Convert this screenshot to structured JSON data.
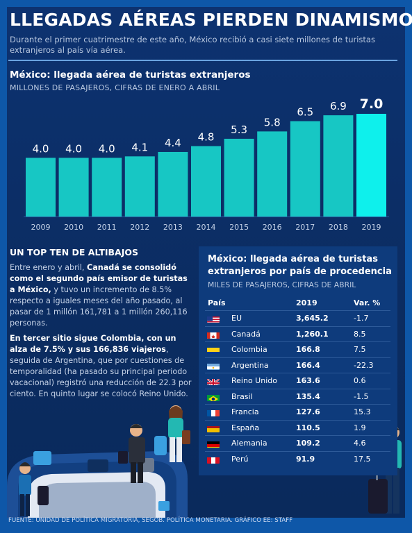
{
  "header": {
    "title": "LLEGADAS AÉREAS PIERDEN DINAMISMO",
    "subtitle": "Durante el primer cuatrimestre de este año, México recibió a casi siete millones de turistas extranjeros al país vía aérea."
  },
  "colors": {
    "bar": "#17c7c4",
    "bar_highlight": "#0ef0ec",
    "background": "#0b2c61",
    "frame": "#0e57a8"
  },
  "chart_data": {
    "type": "bar",
    "title": "México: llegada aérea de turistas extranjeros",
    "subtitle": "MILLONES DE PASAJEROS, CIFRAS DE ENERO A ABRIL",
    "categories": [
      "2009",
      "2010",
      "2011",
      "2012",
      "2013",
      "2014",
      "2015",
      "2016",
      "2017",
      "2018",
      "2019"
    ],
    "values": [
      4.0,
      4.0,
      4.0,
      4.1,
      4.4,
      4.8,
      5.3,
      5.8,
      6.5,
      6.9,
      7.0
    ],
    "value_labels": [
      "4.0",
      "4.0",
      "4.0",
      "4.1",
      "4.4",
      "4.8",
      "5.3",
      "5.8",
      "6.5",
      "6.9",
      "7.0"
    ],
    "highlight_index": 10,
    "xlabel": "",
    "ylabel": "",
    "ylim": [
      0,
      7.0
    ],
    "grid": false
  },
  "section": {
    "heading": "UN TOP TEN DE ALTIBAJOS",
    "p1_a": "Entre enero y abril, ",
    "p1_b": "Canadá se consolidó como el segundo país emisor de turistas a México,",
    "p1_c": " y tuvo un incremento de 8.5% respecto a iguales meses del año pasado, al pasar de 1 millón 161,781 a 1 millón 260,116 personas.",
    "p2_a": "En tercer sitio sigue Colombia, con un alza de 7.5% y sus 166,836 viajeros",
    "p2_b": ", seguida de Argentina, que por cuestiones de temporalidad (ha pasado su principal periodo vacacional) registró una reducción de 22.3 por ciento. En quinto lugar se colocó Reino Unido."
  },
  "table": {
    "title": "México: llegada aérea de turistas extranjeros por país de procedencia",
    "subtitle": "MILES DE PASAJEROS, CIFRAS DE ABRIL",
    "headers": {
      "country": "País",
      "year": "2019",
      "var": "Var. %"
    },
    "rows": [
      {
        "country": "EU",
        "value": "3,645.2",
        "var": "-1.7",
        "flag": "usa-flag"
      },
      {
        "country": "Canadá",
        "value": "1,260.1",
        "var": "8.5",
        "flag": "canada-flag"
      },
      {
        "country": "Colombia",
        "value": "166.8",
        "var": "7.5",
        "flag": "colombia-flag"
      },
      {
        "country": "Argentina",
        "value": "166.4",
        "var": "-22.3",
        "flag": "argentina-flag"
      },
      {
        "country": "Reino Unido",
        "value": "163.6",
        "var": "0.6",
        "flag": "uk-flag"
      },
      {
        "country": "Brasil",
        "value": "135.4",
        "var": "-1.5",
        "flag": "brazil-flag"
      },
      {
        "country": "Francia",
        "value": "127.6",
        "var": "15.3",
        "flag": "france-flag"
      },
      {
        "country": "España",
        "value": "110.5",
        "var": "1.9",
        "flag": "spain-flag"
      },
      {
        "country": "Alemania",
        "value": "109.2",
        "var": "4.6",
        "flag": "germany-flag"
      },
      {
        "country": "Perú",
        "value": "91.9",
        "var": "17.5",
        "flag": "peru-flag"
      }
    ]
  },
  "footer": {
    "source": "FUENTE: UNIDAD DE POLÍTICA MIGRATORIA, SEGOB. POLÍTICA MONETARIA. GRÁFICO EE: STAFF"
  }
}
